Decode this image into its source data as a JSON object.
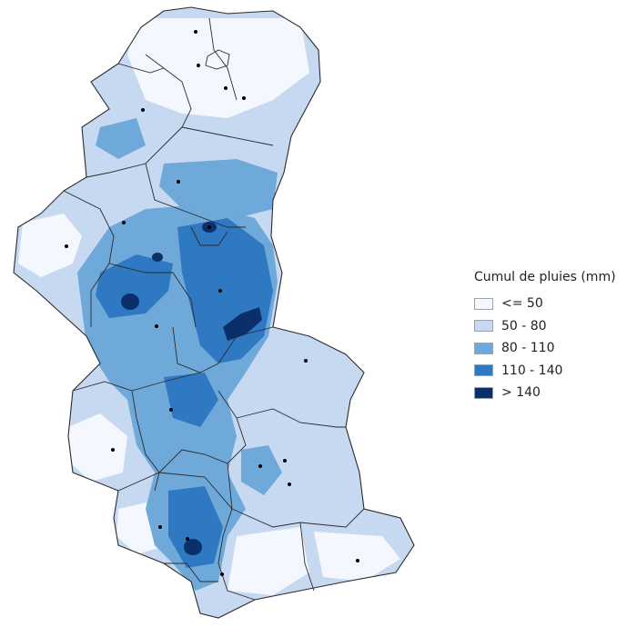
{
  "legend": {
    "title": "Cumul de pluies (mm)",
    "classes": [
      {
        "label": "<= 50",
        "color": "#f4f8fe"
      },
      {
        "label": "50 - 80",
        "color": "#c6d9f0"
      },
      {
        "label": "80 - 110",
        "color": "#6ea9da"
      },
      {
        "label": "110 - 140",
        "color": "#2f78c2"
      },
      {
        "label": "> 140",
        "color": "#0b2f6b"
      }
    ]
  },
  "map": {
    "boundary_color": "#2b2b2b",
    "town_marker_color": "#000000"
  }
}
